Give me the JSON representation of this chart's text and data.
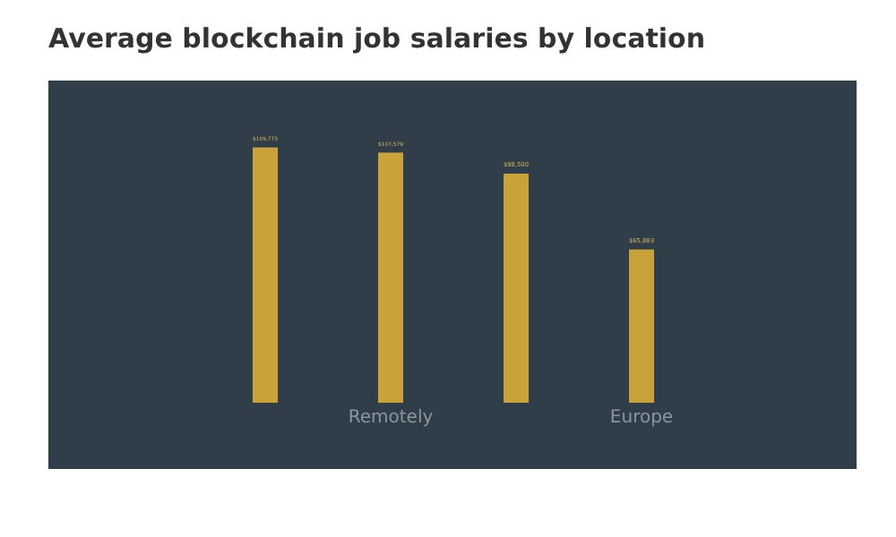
{
  "chart_data": {
    "type": "bar",
    "title": "Average blockchain job salaries by location",
    "categories": [
      null,
      "Remotely",
      null,
      "Europe"
    ],
    "values": [
      109773,
      107579,
      98500,
      65883
    ],
    "value_labels": [
      "$109,773",
      "$107,579",
      "$98,500",
      "$65,883"
    ],
    "color": "#c9a23a",
    "tick_labels": "x",
    "grid": false,
    "legend": false
  }
}
